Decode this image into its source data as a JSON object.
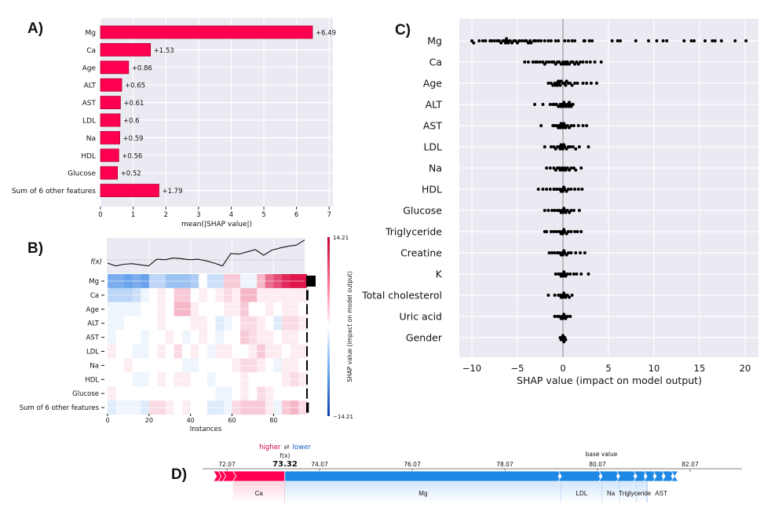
{
  "panels": {
    "a": "A)",
    "b": "B)",
    "c": "C)",
    "d": "D)"
  },
  "colors": {
    "positive": "#ff0051",
    "negative": "#1e88e5",
    "value_label": "#b0002a",
    "plot_bg": "#eaeaf2"
  },
  "chart_data": [
    {
      "type": "bar",
      "orientation": "horizontal",
      "categories": [
        "Mg",
        "Ca",
        "Age",
        "ALT",
        "AST",
        "LDL",
        "Na",
        "HDL",
        "Glucose",
        "Sum of 6 other features"
      ],
      "values": [
        6.49,
        1.53,
        0.86,
        0.65,
        0.61,
        0.6,
        0.59,
        0.56,
        0.52,
        1.79
      ],
      "value_labels": [
        "+6.49",
        "+1.53",
        "+0.86",
        "+0.65",
        "+0.61",
        "+0.6",
        "+0.59",
        "+0.56",
        "+0.52",
        "+1.79"
      ],
      "xlabel": "mean(|SHAP value|)",
      "xticks": [
        "0",
        "1",
        "2",
        "3",
        "4",
        "5",
        "6",
        "7"
      ],
      "xlim": [
        0,
        7.1
      ],
      "grid": true
    },
    {
      "type": "heatmap",
      "fx_label": "f(x)",
      "fx": [
        75,
        72.5,
        74,
        74.5,
        73.5,
        72.5,
        78.5,
        78,
        79.5,
        79,
        78,
        78.5,
        77,
        75,
        72.5,
        83.5,
        83,
        85,
        87,
        82,
        86.5,
        88.5,
        90,
        91,
        95.5
      ],
      "rows": [
        "Mg",
        "Ca",
        "Age",
        "ALT",
        "AST",
        "LDL",
        "Na",
        "HDL",
        "Glucose",
        "Sum of 6 other features"
      ],
      "block_size": 4,
      "values": [
        [
          -8,
          -8,
          -9,
          -8,
          -9,
          -4,
          -4,
          -6,
          -6,
          -6,
          -5,
          0,
          -3,
          -3,
          3,
          3,
          -1,
          -1,
          4,
          8,
          10,
          12,
          13,
          13
        ],
        [
          -4,
          -4,
          -4,
          -3,
          -1,
          0,
          1,
          0,
          3,
          3,
          0,
          1,
          0,
          1,
          2,
          1,
          4,
          4,
          1,
          1,
          1,
          1,
          1,
          1
        ],
        [
          -1,
          -1,
          -1,
          -1,
          0,
          0,
          1,
          0,
          4,
          4,
          1,
          0,
          0,
          0,
          1,
          1,
          3,
          0,
          0,
          1,
          0,
          1,
          1,
          0
        ],
        [
          -1,
          -1,
          0,
          0,
          0,
          0,
          1,
          0,
          0,
          0,
          1,
          1,
          0,
          -2,
          -1,
          0,
          2,
          2,
          1,
          0,
          -2,
          2,
          2,
          1
        ],
        [
          -1,
          0,
          0,
          0,
          -1,
          0,
          0,
          1,
          0,
          -1,
          0,
          1,
          0,
          -1,
          0,
          0,
          3,
          2,
          1,
          1,
          0,
          1,
          1,
          0
        ],
        [
          1,
          0,
          0,
          -1,
          -1,
          0,
          1,
          0,
          2,
          0,
          1,
          0,
          -1,
          1,
          1,
          0,
          0,
          1,
          3,
          1,
          1,
          0,
          1,
          1
        ],
        [
          0,
          0,
          1,
          0,
          0,
          0,
          0,
          0,
          0,
          -1,
          -1,
          0,
          0,
          0,
          0,
          1,
          2,
          2,
          1,
          0,
          -1,
          1,
          1,
          0
        ],
        [
          0,
          0,
          0,
          -1,
          -1,
          0,
          1,
          0,
          1,
          1,
          0,
          0,
          -1,
          0,
          0,
          0,
          1,
          0,
          0,
          0,
          0,
          1,
          2,
          1
        ],
        [
          1,
          0,
          0,
          0,
          0,
          0,
          0,
          0,
          0,
          0,
          0,
          0,
          0,
          -1,
          -1,
          0,
          1,
          0,
          2,
          1,
          0,
          0,
          0,
          0
        ],
        [
          -2,
          -1,
          -1,
          -1,
          -2,
          2,
          2,
          1,
          0,
          1,
          0,
          0,
          -2,
          -2,
          -1,
          2,
          3,
          3,
          3,
          1,
          -1,
          3,
          4,
          2
        ]
      ],
      "importance": [
        6.49,
        1.53,
        0.86,
        0.65,
        0.61,
        0.6,
        0.59,
        0.56,
        0.52,
        1.79
      ],
      "xlabel": "Instances",
      "xticks": [
        "0",
        "20",
        "40",
        "60",
        "80"
      ],
      "xlim": [
        0,
        95
      ],
      "colorbar": {
        "label": "SHAP value (impact on model output)",
        "max_label": "14.21",
        "min_label": "−14.21",
        "max": 14.21,
        "min": -14.21
      }
    },
    {
      "type": "scatter",
      "subtype": "beeswarm",
      "features": [
        "Mg",
        "Ca",
        "Age",
        "ALT",
        "AST",
        "LDL",
        "Na",
        "HDL",
        "Glucose",
        "Triglyceride",
        "Creatine",
        "K",
        "Total cholesterol",
        "Uric acid",
        "Gender"
      ],
      "values": [
        [
          -10,
          -9.8,
          -9.2,
          -8.8,
          -8.5,
          -8,
          -7.8,
          -7.5,
          -7.2,
          -7,
          -6.8,
          -6.6,
          -6.4,
          -6.3,
          -6.2,
          -6.1,
          -6,
          -5.8,
          -5.6,
          -5.4,
          -5.2,
          -5,
          -4.8,
          -4.5,
          -4.2,
          -4,
          -3.8,
          -3.6,
          -3.5,
          -3.2,
          -3,
          -2.7,
          -2.4,
          -2,
          -1.6,
          -1.3,
          -0.8,
          -0.5,
          0.2,
          0.6,
          1,
          1.3,
          2.3,
          2.4,
          2.9,
          3.2,
          5.4,
          6,
          6.3,
          8,
          9.4,
          10.3,
          11,
          11.4,
          13.3,
          14.1,
          14.4,
          15.6,
          16.4,
          16.7,
          17.4,
          18.9,
          20.1
        ],
        [
          -4.2,
          -3.8,
          -3.3,
          -3,
          -2.8,
          -2.5,
          -2.2,
          -2,
          -1.8,
          -1.5,
          -1.2,
          -1,
          -0.8,
          -0.6,
          -0.4,
          -0.2,
          0,
          0.1,
          0.3,
          0.4,
          0.5,
          0.7,
          0.9,
          1.1,
          1.3,
          1.5,
          1.7,
          1.9,
          2.2,
          2.6,
          3,
          3.5,
          4.2
        ],
        [
          -1.6,
          -1.3,
          -1.1,
          -0.9,
          -0.8,
          -0.7,
          -0.6,
          -0.5,
          -0.4,
          -0.3,
          -0.2,
          0,
          0.2,
          0.3,
          0.4,
          0.6,
          0.8,
          1,
          1.3,
          1.6,
          2.2,
          2.6,
          3.1,
          3.7
        ],
        [
          -3.1,
          -2.2,
          -1.4,
          -1.1,
          -0.9,
          -0.7,
          -0.5,
          -0.3,
          -0.2,
          -0.1,
          0,
          0.1,
          0.2,
          0.3,
          0.5,
          0.6,
          0.7,
          0.8,
          0.9,
          1.1
        ],
        [
          -2.4,
          -1.1,
          -0.9,
          -0.7,
          -0.5,
          -0.4,
          -0.3,
          -0.2,
          -0.1,
          0,
          0.1,
          0.2,
          0.3,
          0.5,
          0.7,
          0.9,
          1.2,
          1.7,
          2.2,
          2.6
        ],
        [
          -2,
          -1.3,
          -1,
          -0.8,
          -0.6,
          -0.4,
          -0.3,
          -0.2,
          -0.1,
          0,
          0.1,
          0.2,
          0.4,
          0.6,
          0.8,
          1.1,
          1.4,
          1.8,
          2.8
        ],
        [
          -1.8,
          -1.4,
          -1,
          -0.8,
          -0.6,
          -0.4,
          -0.3,
          -0.1,
          0,
          0.2,
          0.3,
          0.5,
          0.7,
          0.9,
          1.2,
          1.4,
          2
        ],
        [
          -2.7,
          -2.2,
          -1.8,
          -1.4,
          -1,
          -0.7,
          -0.4,
          -0.2,
          -0.1,
          0,
          0.1,
          0.2,
          0.4,
          0.6,
          0.9,
          1.3,
          1.7,
          2.1
        ],
        [
          -2,
          -1.6,
          -1.2,
          -0.9,
          -0.6,
          -0.4,
          -0.2,
          -0.1,
          0,
          0.1,
          0.2,
          0.3,
          0.5,
          0.7,
          0.9,
          1.2,
          1.8
        ],
        [
          -2,
          -1.8,
          -1.3,
          -1,
          -0.7,
          -0.4,
          -0.2,
          -0.1,
          0,
          0.1,
          0.2,
          0.4,
          0.6,
          0.9,
          1.3,
          1.6,
          2
        ],
        [
          -1.5,
          -1.2,
          -0.9,
          -0.6,
          -0.4,
          -0.2,
          -0.1,
          0,
          0.1,
          0.2,
          0.4,
          0.6,
          0.9,
          1.4,
          1.9,
          2.4
        ],
        [
          -0.8,
          -0.5,
          -0.3,
          -0.2,
          -0.1,
          0,
          0.1,
          0.2,
          0.3,
          0.5,
          0.8,
          1.2,
          1.5,
          2,
          2.8
        ],
        [
          -1.6,
          -0.9,
          -0.5,
          -0.3,
          -0.2,
          -0.1,
          0,
          0.1,
          0.2,
          0.3,
          0.5,
          0.7,
          1
        ],
        [
          -0.9,
          -0.6,
          -0.4,
          -0.2,
          -0.1,
          0,
          0.1,
          0.2,
          0.3,
          0.5,
          0.8
        ],
        [
          -0.3,
          -0.2,
          -0.1,
          0,
          0,
          0.1,
          0.2,
          0.3
        ]
      ],
      "xlabel": "SHAP value (impact on model output)",
      "xticks": [
        -10,
        -5,
        0,
        5,
        10,
        15,
        20
      ],
      "xtick_labels": [
        "−10",
        "−5",
        "0",
        "5",
        "10",
        "15",
        "20"
      ],
      "xlim": [
        -11.5,
        21.3
      ],
      "grid": true
    },
    {
      "type": "bar",
      "subtype": "force-plot",
      "legend": {
        "higher": "higher",
        "arrows": "⇄",
        "lower": "lower"
      },
      "fx_label": "f(x)",
      "fx_value": "73.32",
      "base_value_label": "base value",
      "base_value": 80.07,
      "xticks": [
        "72.07",
        "74.07",
        "76.07",
        "78.07",
        "80.07",
        "82.07"
      ],
      "xlim": [
        71.54,
        83.2
      ],
      "positive_segments": [
        {
          "label": "",
          "start": 71.78,
          "end": 71.88
        },
        {
          "label": "",
          "start": 71.88,
          "end": 71.98
        },
        {
          "label": "",
          "start": 71.98,
          "end": 72.2
        },
        {
          "label": "Ca",
          "start": 72.2,
          "end": 73.32
        }
      ],
      "negative_segments": [
        {
          "label": "Mg",
          "start": 73.32,
          "end": 79.29
        },
        {
          "label": "LDL",
          "start": 79.29,
          "end": 80.17
        },
        {
          "label": "Na",
          "start": 80.17,
          "end": 80.55
        },
        {
          "label": "Triglyceride",
          "start": 80.55,
          "end": 80.92
        },
        {
          "label": "AST",
          "start": 80.92,
          "end": 81.14
        },
        {
          "label": "",
          "start": 81.14,
          "end": 81.34
        },
        {
          "label": "",
          "start": 81.34,
          "end": 81.53
        },
        {
          "label": "",
          "start": 81.53,
          "end": 81.73
        },
        {
          "label": "",
          "start": 81.73,
          "end": 81.81
        }
      ]
    }
  ]
}
